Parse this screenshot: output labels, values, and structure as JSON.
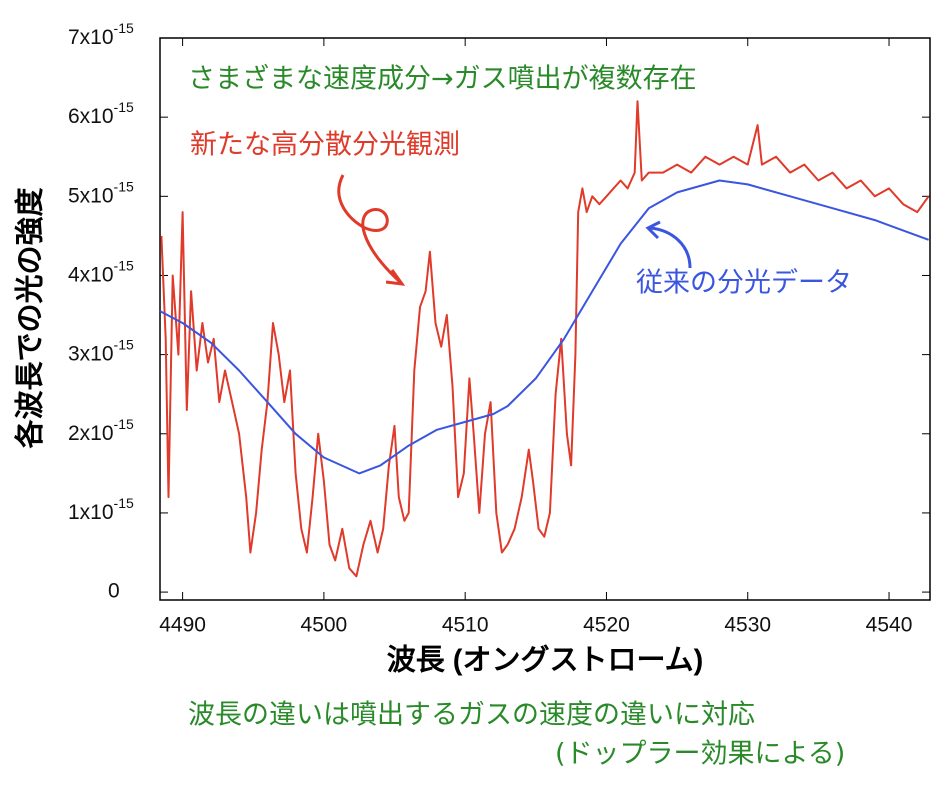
{
  "chart_data": {
    "type": "line",
    "xlabel": "波長 (オングストローム)",
    "ylabel": "各波長での光の強度",
    "annotations": [
      "さまざまな速度成分→ガス噴出が複数存在",
      "新たな高分散分光観測",
      "従来の分光データ",
      "波長の違いは噴出するガスの速度の違いに対応",
      "(ドップラー効果による)"
    ],
    "xlim": [
      4488.4,
      4542.9
    ],
    "ylim": [
      -1e-16,
      7e-15
    ],
    "xticks": [
      4490,
      4500,
      4510,
      4520,
      4530,
      4540
    ],
    "yticks": [
      0,
      {
        "value": 1e-15,
        "label": "1x10",
        "exponent": "-15"
      },
      {
        "value": 2e-15,
        "label": "2x10",
        "exponent": "-15"
      },
      {
        "value": 3e-15,
        "label": "3x10",
        "exponent": "-15"
      },
      {
        "value": 4e-15,
        "label": "4x10",
        "exponent": "-15"
      },
      {
        "value": 5e-15,
        "label": "5x10",
        "exponent": "-15"
      },
      {
        "value": 6e-15,
        "label": "6x10",
        "exponent": "-15"
      },
      {
        "value": 7e-15,
        "label": "7x10",
        "exponent": "-15"
      }
    ],
    "series": [
      {
        "color": "#e03a2a",
        "x": [
          4488.5,
          4488.8,
          4489.0,
          4489.3,
          4489.7,
          4490.0,
          4490.3,
          4490.6,
          4491.0,
          4491.4,
          4491.8,
          4492.2,
          4492.6,
          4493.0,
          4493.5,
          4494.0,
          4494.5,
          4494.8,
          4495.2,
          4495.6,
          4496.0,
          4496.4,
          4496.8,
          4497.2,
          4497.6,
          4498.0,
          4498.4,
          4498.8,
          4499.2,
          4499.6,
          4500.0,
          4500.4,
          4500.8,
          4501.3,
          4501.8,
          4502.3,
          4502.8,
          4503.3,
          4503.8,
          4504.2,
          4504.6,
          4505.0,
          4505.3,
          4505.7,
          4506.0,
          4506.4,
          4506.8,
          4507.2,
          4507.5,
          4507.9,
          4508.3,
          4508.7,
          4509.1,
          4509.5,
          4509.9,
          4510.3,
          4510.6,
          4511.0,
          4511.4,
          4511.8,
          4512.2,
          4512.6,
          4513.0,
          4513.5,
          4514.0,
          4514.5,
          4514.8,
          4515.2,
          4515.6,
          4516.0,
          4516.4,
          4516.8,
          4517.2,
          4517.5,
          4517.8,
          4518.0,
          4518.3,
          4518.6,
          4519.0,
          4519.5,
          4520.0,
          4520.5,
          4521.0,
          4521.5,
          4522.0,
          4522.2,
          4522.5,
          4523.0,
          4524.0,
          4525.0,
          4526.0,
          4527.0,
          4528.0,
          4529.0,
          4530.0,
          4530.7,
          4531.0,
          4532.0,
          4533.0,
          4534.0,
          4535.0,
          4536.0,
          4537.0,
          4538.0,
          4539.0,
          4540.0,
          4541.0,
          4542.0,
          4542.8
        ],
        "values": [
          4.5e-15,
          3.2e-15,
          1.2e-15,
          4e-15,
          3e-15,
          4.8e-15,
          2.3e-15,
          3.8e-15,
          2.8e-15,
          3.4e-15,
          2.9e-15,
          3.2e-15,
          2.4e-15,
          2.8e-15,
          2.4e-15,
          2e-15,
          1.2e-15,
          5e-16,
          1e-15,
          1.8e-15,
          2.4e-15,
          3.4e-15,
          3e-15,
          2.4e-15,
          2.8e-15,
          1.5e-15,
          8e-16,
          5e-16,
          1.2e-15,
          2e-15,
          1.4e-15,
          6e-16,
          4e-16,
          8e-16,
          3e-16,
          2e-16,
          6e-16,
          9e-16,
          5e-16,
          8e-16,
          1.6e-15,
          2.1e-15,
          1.2e-15,
          9e-16,
          1e-15,
          2.8e-15,
          3.6e-15,
          3.8e-15,
          4.3e-15,
          3.4e-15,
          3.1e-15,
          3.5e-15,
          2.6e-15,
          1.2e-15,
          1.5e-15,
          2.7e-15,
          2e-15,
          1e-15,
          2e-15,
          2.4e-15,
          1e-15,
          5e-16,
          6e-16,
          8e-16,
          1.2e-15,
          1.8e-15,
          1.4e-15,
          8e-16,
          7e-16,
          1e-15,
          2.5e-15,
          3.2e-15,
          2e-15,
          1.6e-15,
          3e-15,
          4.8e-15,
          5.1e-15,
          4.8e-15,
          5e-15,
          4.9e-15,
          5e-15,
          5.1e-15,
          5.2e-15,
          5.1e-15,
          5.3e-15,
          6.2e-15,
          5.2e-15,
          5.3e-15,
          5.3e-15,
          5.4e-15,
          5.3e-15,
          5.5e-15,
          5.4e-15,
          5.5e-15,
          5.4e-15,
          5.9e-15,
          5.4e-15,
          5.5e-15,
          5.3e-15,
          5.4e-15,
          5.2e-15,
          5.3e-15,
          5.1e-15,
          5.2e-15,
          5e-15,
          5.1e-15,
          4.9e-15,
          4.8e-15,
          5e-15
        ]
      },
      {
        "color": "#3a55e0",
        "x": [
          4488.4,
          4490,
          4492,
          4494,
          4496,
          4498,
          4500,
          4502.5,
          4504,
          4506,
          4508,
          4510,
          4512,
          4513,
          4515,
          4517,
          4519,
          4521,
          4523,
          4525,
          4528,
          4530,
          4533,
          4536,
          4539,
          4542.8
        ],
        "values": [
          3.55e-15,
          3.4e-15,
          3.15e-15,
          2.8e-15,
          2.4e-15,
          2e-15,
          1.7e-15,
          1.5e-15,
          1.6e-15,
          1.85e-15,
          2.05e-15,
          2.15e-15,
          2.25e-15,
          2.35e-15,
          2.7e-15,
          3.2e-15,
          3.8e-15,
          4.4e-15,
          4.85e-15,
          5.05e-15,
          5.2e-15,
          5.15e-15,
          5e-15,
          4.85e-15,
          4.7e-15,
          4.45e-15
        ]
      }
    ]
  }
}
